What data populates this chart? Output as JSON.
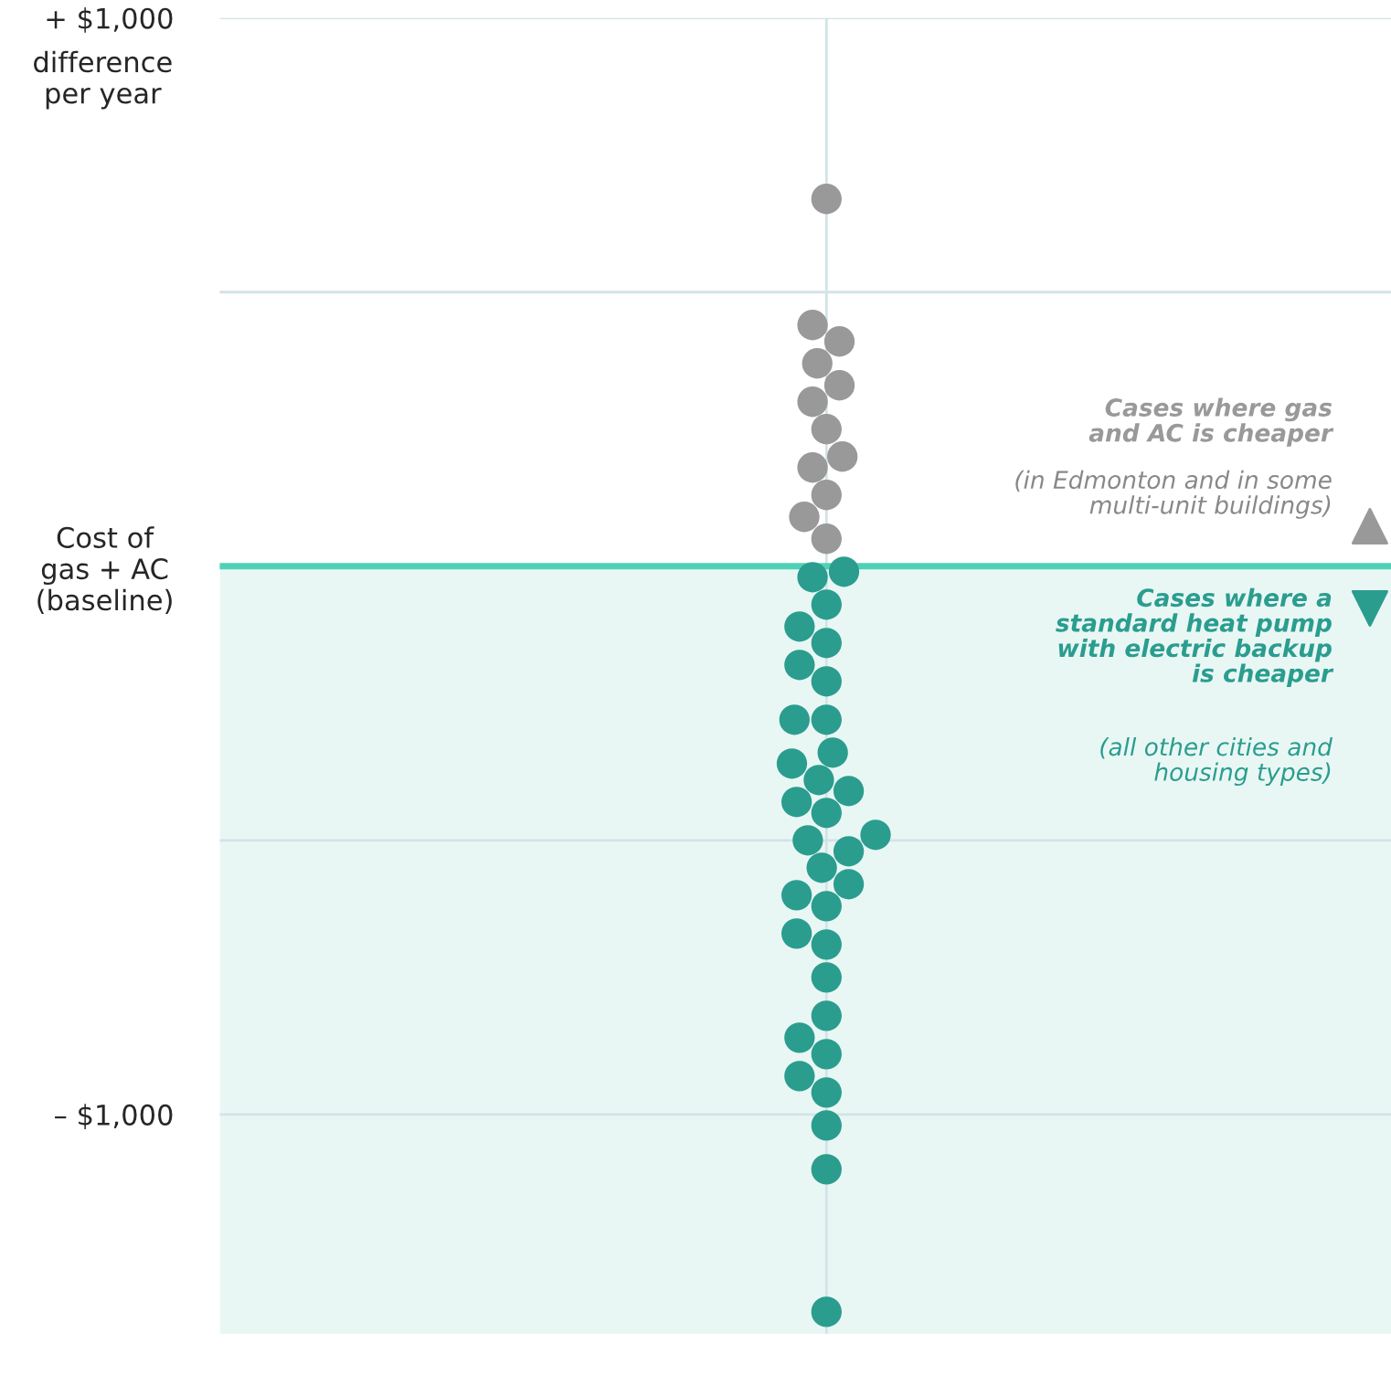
{
  "chart_data": {
    "type": "scatter",
    "ylabel": "difference\nper year",
    "categories": [
      null
    ],
    "series": [
      {
        "color": "#999999",
        "x": [
          null,
          null,
          null,
          null,
          null,
          null,
          null,
          null,
          null,
          null,
          null,
          null
        ],
        "values": [
          670,
          440,
          410,
          370,
          330,
          300,
          250,
          200,
          180,
          130,
          90,
          50
        ]
      },
      {
        "color": "#2a9d8f",
        "x": [
          null,
          null,
          null,
          null,
          null,
          null,
          null,
          null,
          null,
          null,
          null,
          null,
          null,
          null,
          null,
          null,
          null,
          null,
          null,
          null,
          null,
          null,
          null,
          null,
          null,
          null,
          null,
          null,
          null,
          null,
          null,
          null,
          null
        ],
        "values": [
          -10,
          -20,
          -70,
          -110,
          -140,
          -180,
          -210,
          -280,
          -280,
          -340,
          -360,
          -390,
          -410,
          -430,
          -450,
          -490,
          -500,
          -520,
          -550,
          -580,
          -600,
          -620,
          -670,
          -690,
          -750,
          -820,
          -860,
          -890,
          -930,
          -960,
          -1020,
          -1100,
          -1360
        ]
      }
    ],
    "ylim": [
      -1400,
      1000
    ],
    "yticks": [
      {
        "value": 1000,
        "label": "+ $1,000"
      },
      {
        "value": 500,
        "label": null
      },
      {
        "value": 0,
        "label": "Cost of\ngas + AC\n(baseline)"
      },
      {
        "value": -500,
        "label": null
      },
      {
        "value": -1000,
        "label": "– $1,000"
      }
    ],
    "grid": true,
    "tick_labels": "y",
    "ref_lines": [
      {
        "axis": "y",
        "value": 0,
        "color": "#4fd1b5"
      }
    ],
    "bands": [
      {
        "axis": "y",
        "from": -1400,
        "to": 0,
        "color": "#e9f7f4"
      }
    ],
    "annotations": [
      "Cases where gas\nand AC is cheaper",
      "(in Edmonton and in some\nmulti-unit buildings)",
      "Cases where a\nstandard heat pump\nwith electric backup\nis cheaper",
      "(all other cities and\nhousing types)"
    ]
  }
}
